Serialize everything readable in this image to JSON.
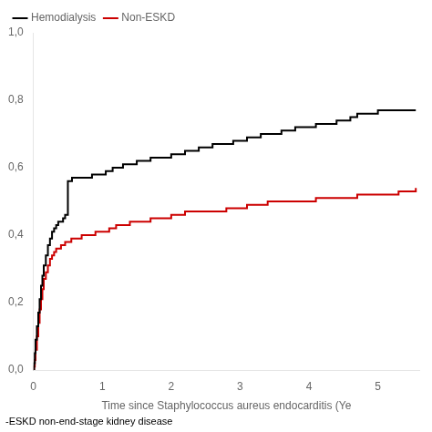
{
  "chart_data": {
    "type": "line",
    "line_style": "step",
    "xlabel": "Time since Staphylococcus aureus endocarditis (Ye",
    "footnote": "-ESKD non-end-stage kidney disease",
    "xlim": [
      0,
      5.6
    ],
    "ylim": [
      0.0,
      1.0
    ],
    "xticks": [
      0,
      1,
      2,
      3,
      4,
      5
    ],
    "yticks": [
      {
        "value": 0.0,
        "label": "0,0"
      },
      {
        "value": 0.2,
        "label": "0,2"
      },
      {
        "value": 0.4,
        "label": "0,4"
      },
      {
        "value": 0.6,
        "label": "0,6"
      },
      {
        "value": 0.8,
        "label": "0,8"
      },
      {
        "value": 1.0,
        "label": "1,0"
      }
    ],
    "grid": false,
    "legend": "upper left",
    "series": [
      {
        "name": "Hemodialysis",
        "color": "#000000",
        "x": [
          0,
          0.01,
          0.02,
          0.03,
          0.05,
          0.07,
          0.09,
          0.11,
          0.13,
          0.15,
          0.18,
          0.21,
          0.24,
          0.27,
          0.3,
          0.33,
          0.36,
          0.4,
          0.43,
          0.46,
          0.5,
          0.53,
          0.56,
          0.6,
          0.65,
          0.7,
          0.75,
          0.8,
          0.85,
          0.9,
          0.95,
          1.0,
          1.05,
          1.1,
          1.15,
          1.2,
          1.25,
          1.3,
          1.4,
          1.5,
          1.6,
          1.7,
          1.8,
          1.9,
          2.0,
          2.1,
          2.2,
          2.3,
          2.4,
          2.5,
          2.6,
          2.7,
          2.8,
          2.9,
          3.0,
          3.1,
          3.2,
          3.3,
          3.4,
          3.5,
          3.6,
          3.7,
          3.8,
          3.9,
          4.0,
          4.1,
          4.2,
          4.3,
          4.4,
          4.5,
          4.6,
          4.7,
          4.8,
          4.9,
          5.0,
          5.1,
          5.2,
          5.3,
          5.4,
          5.55
        ],
        "values": [
          0,
          0.02,
          0.05,
          0.09,
          0.13,
          0.17,
          0.21,
          0.25,
          0.28,
          0.31,
          0.34,
          0.37,
          0.39,
          0.41,
          0.42,
          0.43,
          0.44,
          0.44,
          0.45,
          0.46,
          0.56,
          0.56,
          0.57,
          0.57,
          0.57,
          0.57,
          0.57,
          0.57,
          0.58,
          0.58,
          0.58,
          0.58,
          0.59,
          0.59,
          0.6,
          0.6,
          0.6,
          0.61,
          0.61,
          0.62,
          0.62,
          0.63,
          0.63,
          0.63,
          0.64,
          0.64,
          0.65,
          0.65,
          0.66,
          0.66,
          0.67,
          0.67,
          0.67,
          0.68,
          0.68,
          0.69,
          0.69,
          0.7,
          0.7,
          0.7,
          0.71,
          0.71,
          0.72,
          0.72,
          0.72,
          0.73,
          0.73,
          0.73,
          0.74,
          0.74,
          0.75,
          0.76,
          0.76,
          0.76,
          0.77,
          0.77,
          0.77,
          0.77,
          0.77,
          0.77
        ]
      },
      {
        "name": "Non-ESKD",
        "color": "#cc0000",
        "x": [
          0,
          0.01,
          0.02,
          0.03,
          0.05,
          0.07,
          0.09,
          0.11,
          0.13,
          0.15,
          0.18,
          0.21,
          0.24,
          0.27,
          0.3,
          0.33,
          0.36,
          0.4,
          0.43,
          0.46,
          0.5,
          0.55,
          0.6,
          0.65,
          0.7,
          0.75,
          0.8,
          0.85,
          0.9,
          0.95,
          1.0,
          1.05,
          1.1,
          1.15,
          1.2,
          1.25,
          1.3,
          1.4,
          1.5,
          1.6,
          1.7,
          1.8,
          1.9,
          2.0,
          2.1,
          2.2,
          2.3,
          2.4,
          2.5,
          2.6,
          2.7,
          2.8,
          2.9,
          3.0,
          3.1,
          3.2,
          3.3,
          3.4,
          3.5,
          3.6,
          3.7,
          3.8,
          3.9,
          4.0,
          4.1,
          4.2,
          4.3,
          4.4,
          4.5,
          4.6,
          4.7,
          4.8,
          4.9,
          5.0,
          5.1,
          5.2,
          5.3,
          5.4,
          5.55
        ],
        "values": [
          0,
          0.01,
          0.03,
          0.06,
          0.1,
          0.14,
          0.18,
          0.21,
          0.24,
          0.27,
          0.29,
          0.31,
          0.33,
          0.34,
          0.35,
          0.36,
          0.36,
          0.37,
          0.37,
          0.38,
          0.38,
          0.39,
          0.39,
          0.39,
          0.4,
          0.4,
          0.4,
          0.4,
          0.41,
          0.41,
          0.41,
          0.41,
          0.42,
          0.42,
          0.43,
          0.43,
          0.43,
          0.44,
          0.44,
          0.44,
          0.45,
          0.45,
          0.45,
          0.46,
          0.46,
          0.47,
          0.47,
          0.47,
          0.47,
          0.47,
          0.47,
          0.48,
          0.48,
          0.48,
          0.49,
          0.49,
          0.49,
          0.5,
          0.5,
          0.5,
          0.5,
          0.5,
          0.5,
          0.5,
          0.51,
          0.51,
          0.51,
          0.51,
          0.51,
          0.51,
          0.52,
          0.52,
          0.52,
          0.52,
          0.52,
          0.52,
          0.53,
          0.53,
          0.54
        ]
      }
    ]
  }
}
